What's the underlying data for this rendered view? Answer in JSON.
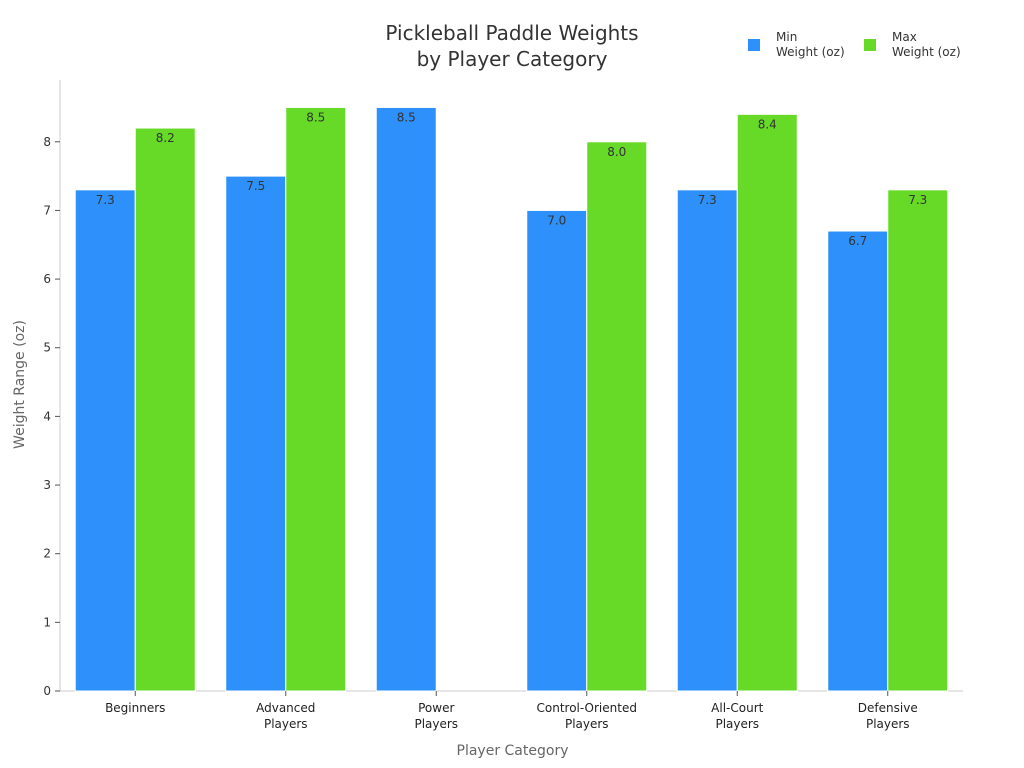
{
  "chart_data": {
    "type": "bar",
    "title_lines": [
      "Pickleball Paddle Weights",
      "by Player Category"
    ],
    "xlabel": "Player Category",
    "ylabel": "Weight Range (oz)",
    "ylim": [
      0,
      8.9
    ],
    "yticks": [
      0,
      1,
      2,
      3,
      4,
      5,
      6,
      7,
      8
    ],
    "grid": false,
    "legend_position": "top-right",
    "categories": [
      [
        "Beginners"
      ],
      [
        "Advanced",
        "Players"
      ],
      [
        "Power",
        "Players"
      ],
      [
        "Control-Oriented",
        "Players"
      ],
      [
        "All-Court",
        "Players"
      ],
      [
        "Defensive",
        "Players"
      ]
    ],
    "series": [
      {
        "name": "Min\nWeight (oz)",
        "color": "#2e90fa",
        "values": [
          7.3,
          7.5,
          8.5,
          7.0,
          7.3,
          6.7
        ]
      },
      {
        "name": "Max\nWeight (oz)",
        "color": "#66da26",
        "values": [
          8.2,
          8.5,
          null,
          8.0,
          8.4,
          7.3
        ]
      }
    ]
  }
}
